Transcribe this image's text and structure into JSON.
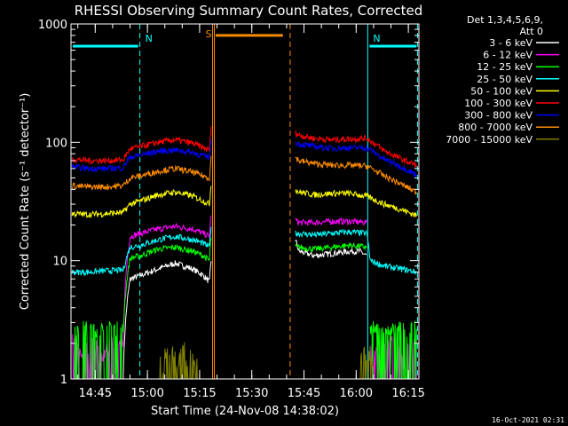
{
  "chart_data": {
    "type": "line",
    "title": "RHESSI Observing Summary Count Rates, Corrected",
    "xlabel": "Start Time (24-Nov-08 14:38:02)",
    "ylabel": "Corrected Count Rate (s⁻¹ detector⁻¹)",
    "yscale": "log",
    "ylim": [
      1,
      1000
    ],
    "xlim_minutes": [
      0,
      100
    ],
    "yticks": [
      {
        "value": 1,
        "label": "1"
      },
      {
        "value": 10,
        "label": "10"
      },
      {
        "value": 100,
        "label": "100"
      },
      {
        "value": 1000,
        "label": "1000"
      }
    ],
    "xticks": [
      {
        "t": 6.97,
        "label": "14:45"
      },
      {
        "t": 21.97,
        "label": "15:00"
      },
      {
        "t": 36.97,
        "label": "15:15"
      },
      {
        "t": 51.97,
        "label": "15:30"
      },
      {
        "t": 66.97,
        "label": "15:45"
      },
      {
        "t": 81.97,
        "label": "16:00"
      },
      {
        "t": 96.97,
        "label": "16:15"
      }
    ],
    "legend_header": [
      "Det 1,3,4,5,6,9,",
      "Att 0"
    ],
    "night_markers": [
      {
        "t": 0,
        "label": ""
      },
      {
        "t": 19.8,
        "label": "N"
      },
      {
        "t": 85.3,
        "label": "N"
      },
      {
        "t": 99.6,
        "label": ""
      }
    ],
    "saa_markers": [
      {
        "t": 40.7,
        "label": "S"
      },
      {
        "t": 63.0,
        "label": ""
      }
    ],
    "night_bars": [
      {
        "t_start": 0.5,
        "t_end": 19.3
      },
      {
        "t_start": 85.8,
        "t_end": 99.3
      }
    ],
    "saa_bar": {
      "t_start": 41.6,
      "t_end": 60.9
    },
    "series": [
      {
        "name": "3 - 6 keV",
        "color": "#ffffff",
        "segments": [
          {
            "x": [
              15,
              17,
              20,
              25,
              30,
              35,
              38,
              39.8,
              40.3
            ],
            "y": [
              1,
              7,
              7.5,
              8.5,
              9.5,
              8.5,
              7.5,
              6.6,
              10
            ]
          },
          {
            "x": [
              64.5,
              65.5,
              70,
              75,
              80,
              83,
              85
            ],
            "y": [
              15,
              12,
              11,
              11.5,
              12,
              12,
              11
            ]
          }
        ]
      },
      {
        "name": "6 - 12 keV",
        "color": "#ff00ff",
        "segments": [
          {
            "x": [
              0.3,
              3,
              6,
              9,
              12,
              14.8
            ],
            "y": [
              2,
              1.5,
              2,
              1.5,
              2,
              1.8
            ]
          },
          {
            "x": [
              15,
              17,
              20,
              25,
              30,
              35,
              38,
              39.8,
              40.3
            ],
            "y": [
              1.8,
              16,
              17,
              18.5,
              19.5,
              18.5,
              17,
              16,
              25
            ]
          },
          {
            "x": [
              64.5,
              65.5,
              70,
              75,
              80,
              85
            ],
            "y": [
              22,
              21,
              21,
              21.5,
              21.5,
              21
            ]
          },
          {
            "x": [
              86,
              89,
              92,
              95,
              99.3
            ],
            "y": [
              1.8,
              1.5,
              2,
              1.6,
              1.9
            ]
          }
        ]
      },
      {
        "name": "12 - 25 keV",
        "color": "#00ff00",
        "segments": [
          {
            "x": [
              0.3,
              4,
              8,
              12,
              14.8
            ],
            "y": [
              2.5,
              2.6,
              2.5,
              2.6,
              2.5
            ]
          },
          {
            "x": [
              15,
              17,
              20,
              25,
              30,
              35,
              38,
              39.8,
              40.3
            ],
            "y": [
              2.5,
              10.5,
              11,
              12.5,
              13,
              12,
              11,
              10,
              16
            ]
          },
          {
            "x": [
              64.5,
              65.5,
              70,
              75,
              80,
              85
            ],
            "y": [
              13,
              13,
              12.5,
              13,
              13.5,
              13
            ]
          },
          {
            "x": [
              86,
              89,
              93,
              96,
              99.3
            ],
            "y": [
              2.6,
              2.5,
              2.6,
              2.5,
              2.6
            ]
          }
        ]
      },
      {
        "name": "25 - 50 keV",
        "color": "#00ffff",
        "segments": [
          {
            "x": [
              0.3,
              5,
              10,
              15,
              17,
              20,
              25,
              30,
              35,
              38,
              39.8,
              40.3
            ],
            "y": [
              8,
              8,
              8.2,
              8.3,
              13,
              13.5,
              15,
              16,
              15,
              14,
              13,
              20
            ]
          },
          {
            "x": [
              64.5,
              65.5,
              70,
              75,
              80,
              85,
              86,
              90,
              95,
              99.3
            ],
            "y": [
              17,
              17,
              16.5,
              17,
              17.5,
              17,
              10,
              9,
              8.5,
              8
            ]
          }
        ]
      },
      {
        "name": "50 - 100 keV",
        "color": "#ffff00",
        "segments": [
          {
            "x": [
              0.3,
              5,
              10,
              15,
              17,
              20,
              25,
              30,
              35,
              38,
              39.8,
              40.3
            ],
            "y": [
              25,
              24.5,
              25,
              25.5,
              30,
              32,
              36,
              38,
              35,
              32,
              30,
              45
            ]
          },
          {
            "x": [
              64.5,
              65.5,
              70,
              75,
              80,
              85,
              90,
              95,
              99.3
            ],
            "y": [
              40,
              38,
              36,
              37,
              37,
              35,
              30,
              27,
              24
            ]
          }
        ]
      },
      {
        "name": "100 - 300 keV",
        "color": "#ff0000",
        "segments": [
          {
            "x": [
              0.3,
              5,
              10,
              15,
              17,
              20,
              25,
              30,
              35,
              38,
              39.8,
              40.3
            ],
            "y": [
              72,
              70,
              70,
              71,
              88,
              92,
              100,
              105,
              98,
              90,
              86,
              135
            ]
          },
          {
            "x": [
              64.5,
              65.5,
              70,
              75,
              80,
              85,
              90,
              95,
              99.3
            ],
            "y": [
              120,
              115,
              108,
              105,
              107,
              108,
              85,
              72,
              64
            ]
          }
        ]
      },
      {
        "name": "300 - 800 keV",
        "color": "#0000ff",
        "segments": [
          {
            "x": [
              0.3,
              5,
              10,
              15,
              17,
              20,
              25,
              30,
              35,
              38,
              39.8,
              40.3
            ],
            "y": [
              62,
              60,
              60,
              61,
              75,
              78,
              84,
              86,
              82,
              77,
              74,
              110
            ]
          },
          {
            "x": [
              64.5,
              65.5,
              70,
              75,
              80,
              85,
              90,
              95,
              99.3
            ],
            "y": [
              100,
              97,
              92,
              89,
              90,
              90,
              72,
              62,
              53
            ]
          }
        ]
      },
      {
        "name": "800 - 7000 keV",
        "color": "#ff8c00",
        "segments": [
          {
            "x": [
              0.3,
              5,
              10,
              15,
              17,
              20,
              25,
              30,
              35,
              38,
              39.8,
              40.3
            ],
            "y": [
              43,
              42,
              42,
              43,
              50,
              52,
              57,
              60,
              56,
              52,
              50,
              75
            ]
          },
          {
            "x": [
              64.5,
              65.5,
              70,
              75,
              80,
              85,
              90,
              95,
              99.3
            ],
            "y": [
              75,
              70,
              66,
              64,
              64,
              63,
              52,
              44,
              38
            ]
          }
        ]
      },
      {
        "name": "7000 - 15000 keV",
        "color": "#808000",
        "segments": [
          {
            "x": [
              25.5,
              26.5,
              27.5,
              28.5,
              29.5,
              30.5,
              31.5,
              32.5,
              33.5,
              34.5,
              35.5,
              36.5
            ],
            "y": [
              1.6,
              1.2,
              1.8,
              1.3,
              1.7,
              1.1,
              1.5,
              1.9,
              1.2,
              1.6,
              1.3,
              1.7
            ]
          },
          {
            "x": [
              83,
              84,
              85,
              86,
              87
            ],
            "y": [
              1.4,
              1.8,
              1.2,
              1.6,
              1.3
            ]
          }
        ]
      }
    ]
  },
  "footer": {
    "timestamp": "16-Oct-2021 02:31"
  }
}
